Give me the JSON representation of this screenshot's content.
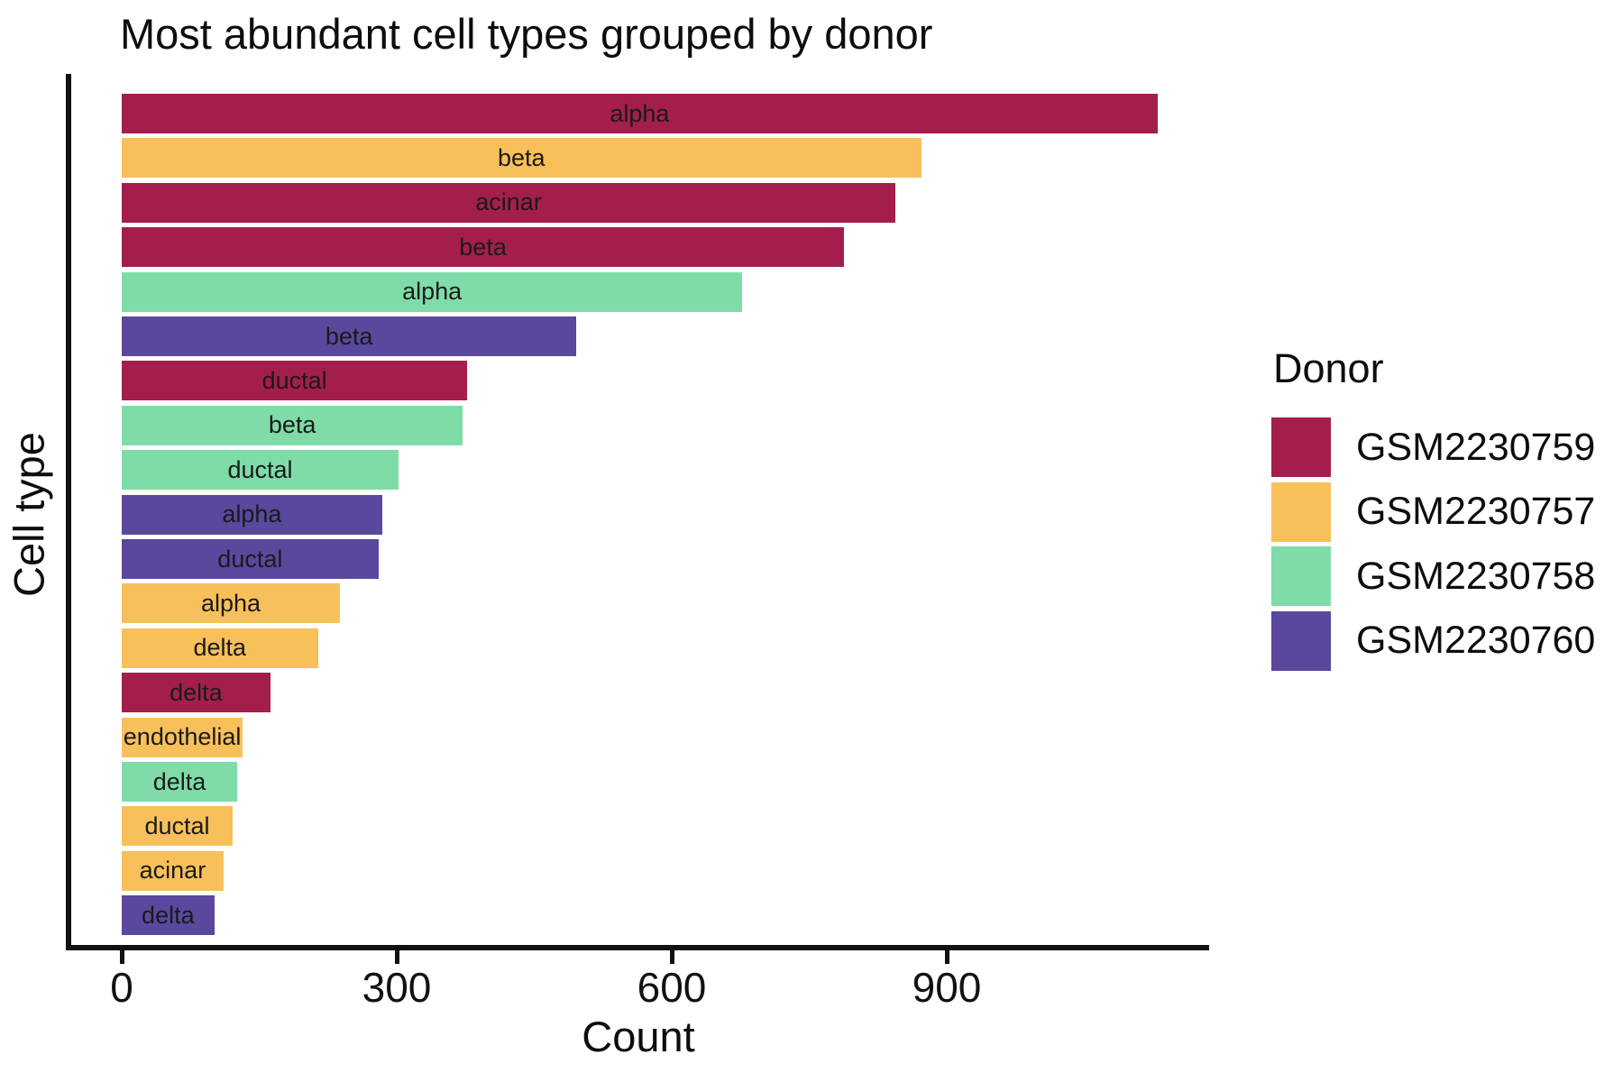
{
  "title": "Most abundant cell types grouped by donor",
  "chart_data": {
    "type": "bar",
    "orientation": "horizontal",
    "title": "Most abundant cell types grouped by donor",
    "xlabel": "Count",
    "ylabel": "Cell type",
    "xlim": [
      0,
      1186
    ],
    "x_ticks": [
      0,
      300,
      600,
      900
    ],
    "x_tick_labels": [
      "0",
      "300",
      "600",
      "900"
    ],
    "grid": false,
    "bar_label_position": "center-inside",
    "legend": {
      "title": "Donor",
      "position": "right",
      "entries": [
        {
          "label": "GSM2230759",
          "color": "#A41E4D"
        },
        {
          "label": "GSM2230757",
          "color": "#F8C05A"
        },
        {
          "label": "GSM2230758",
          "color": "#7FDCA8"
        },
        {
          "label": "GSM2230760",
          "color": "#59489E"
        }
      ]
    },
    "bars": [
      {
        "cell_type": "alpha",
        "donor": "GSM2230759",
        "count": 1130
      },
      {
        "cell_type": "beta",
        "donor": "GSM2230757",
        "count": 872
      },
      {
        "cell_type": "acinar",
        "donor": "GSM2230759",
        "count": 844
      },
      {
        "cell_type": "beta",
        "donor": "GSM2230759",
        "count": 788
      },
      {
        "cell_type": "alpha",
        "donor": "GSM2230758",
        "count": 677
      },
      {
        "cell_type": "beta",
        "donor": "GSM2230760",
        "count": 496
      },
      {
        "cell_type": "ductal",
        "donor": "GSM2230759",
        "count": 377
      },
      {
        "cell_type": "beta",
        "donor": "GSM2230758",
        "count": 372
      },
      {
        "cell_type": "ductal",
        "donor": "GSM2230758",
        "count": 302
      },
      {
        "cell_type": "alpha",
        "donor": "GSM2230760",
        "count": 284
      },
      {
        "cell_type": "ductal",
        "donor": "GSM2230760",
        "count": 280
      },
      {
        "cell_type": "alpha",
        "donor": "GSM2230757",
        "count": 238
      },
      {
        "cell_type": "delta",
        "donor": "GSM2230757",
        "count": 214
      },
      {
        "cell_type": "delta",
        "donor": "GSM2230759",
        "count": 162
      },
      {
        "cell_type": "endothelial",
        "donor": "GSM2230757",
        "count": 132
      },
      {
        "cell_type": "delta",
        "donor": "GSM2230758",
        "count": 126
      },
      {
        "cell_type": "ductal",
        "donor": "GSM2230757",
        "count": 121
      },
      {
        "cell_type": "acinar",
        "donor": "GSM2230757",
        "count": 111
      },
      {
        "cell_type": "delta",
        "donor": "GSM2230760",
        "count": 101
      }
    ]
  },
  "colors": {
    "axis": "#111111",
    "text": "#0d0d0d",
    "background": "#ffffff"
  }
}
